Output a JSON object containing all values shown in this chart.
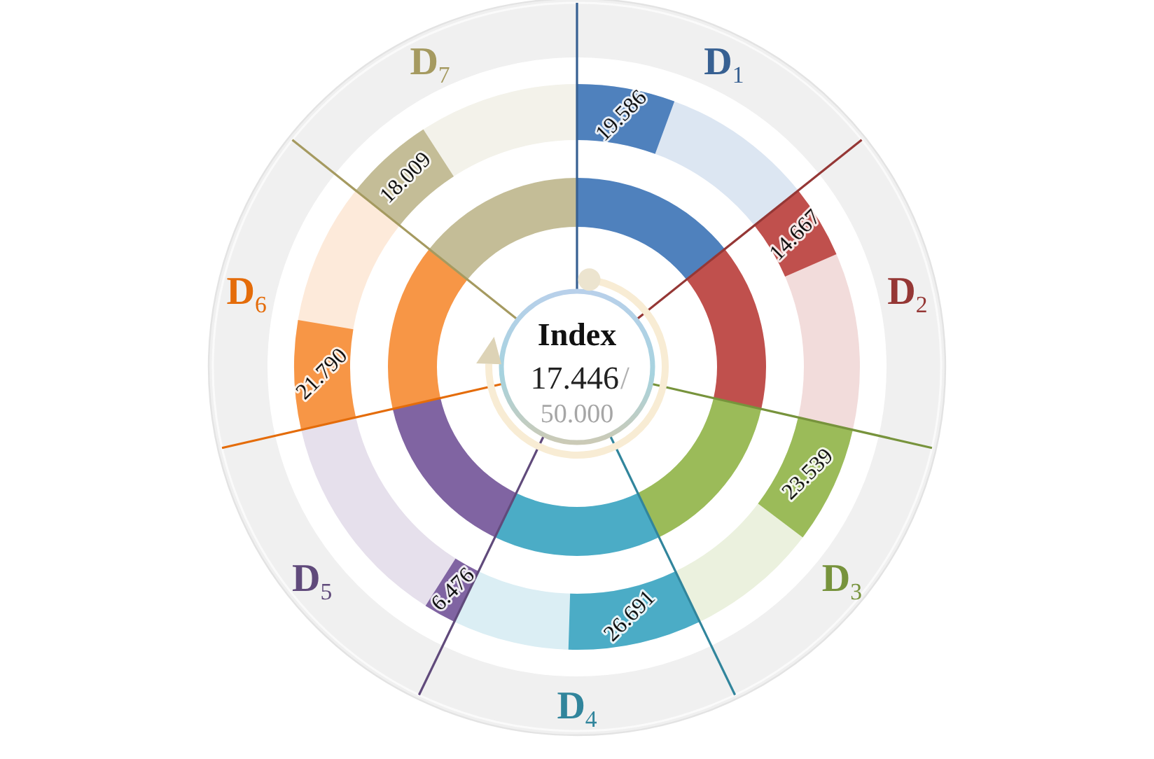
{
  "chart_data": {
    "type": "other",
    "title": "Index",
    "categories": [
      "D$_{1}$",
      "D$_{2}$",
      "D$_{3}$",
      "D$_{4}$",
      "D$_{5}$",
      "D$_{6}$",
      "D$_{7}$"
    ],
    "values": [
      19.586,
      14.667,
      23.539,
      26.691,
      6.476,
      21.79,
      18.009
    ],
    "value_labels": [
      "19.586",
      "14.667",
      "23.539",
      "26.691",
      "6.476",
      "21.790",
      "18.009"
    ],
    "colors": [
      "#4f81bd",
      "#c0504d",
      "#9bbb59",
      "#4bacc6",
      "#8064a2",
      "#f79646",
      "#c4bd97"
    ],
    "annotations": [
      "17.446",
      "/",
      "50.000"
    ]
  }
}
